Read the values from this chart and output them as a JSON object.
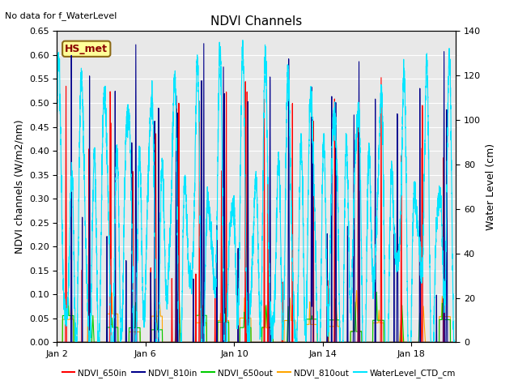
{
  "title": "NDVI Channels",
  "subtitle": "No data for f_WaterLevel",
  "ylabel_left": "NDVI channels (W/m2/nm)",
  "ylabel_right": "Water Level (cm)",
  "ylim_left": [
    0.0,
    0.65
  ],
  "ylim_right": [
    0,
    140
  ],
  "yticks_left": [
    0.0,
    0.05,
    0.1,
    0.15,
    0.2,
    0.25,
    0.3,
    0.35,
    0.4,
    0.45,
    0.5,
    0.55,
    0.6,
    0.65
  ],
  "yticks_right": [
    0,
    20,
    40,
    60,
    80,
    100,
    120,
    140
  ],
  "xtick_labels": [
    "Jan 2",
    "Jan 6",
    "Jan 10",
    "Jan 14",
    "Jan 18"
  ],
  "xtick_positions": [
    0,
    4,
    8,
    12,
    16
  ],
  "xlim": [
    0,
    18
  ],
  "colors": {
    "NDVI_650in": "#ff0000",
    "NDVI_810in": "#00008b",
    "NDVI_650out": "#00cc00",
    "NDVI_810out": "#ffa500",
    "WaterLevel_CTD_cm": "#00e5ff"
  },
  "legend_label": "HS_met",
  "legend_bbox_facecolor": "#ffff99",
  "legend_bbox_edgecolor": "#8b6914",
  "plot_bg_color": "#e8e8e8",
  "grid_color": "#ffffff",
  "lw_ndvi": 0.8,
  "lw_water": 0.8
}
